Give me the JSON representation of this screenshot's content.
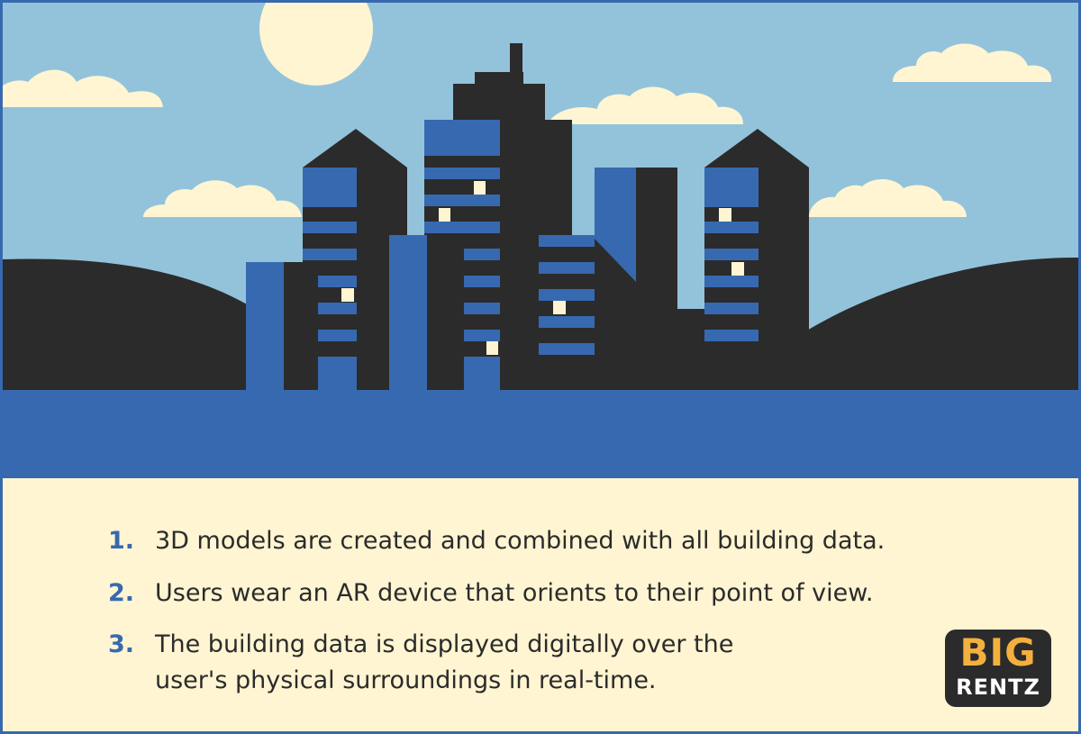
{
  "colors": {
    "sky": "#93c3db",
    "sun": "#fff5d2",
    "cloud": "#fff5d2",
    "building_dark": "#2b2b2b",
    "building_blue": "#3769b0",
    "water": "#3769b0",
    "window_light": "#fff5d2",
    "panel_bg": "#fff5d2",
    "number_color": "#3769b0",
    "logo_gold": "#f4b03e"
  },
  "icons": [
    "sun-icon",
    "cloud-icon",
    "city-skyline-illustration"
  ],
  "steps": [
    {
      "number": "1.",
      "line1": "3D models are created and combined with all building data.",
      "line2": ""
    },
    {
      "number": "2.",
      "line1": "Users wear an AR device that orients to their point of view.",
      "line2": ""
    },
    {
      "number": "3.",
      "line1": "The building data is displayed digitally over the",
      "line2": "user's physical surroundings in real-time."
    }
  ],
  "logo": {
    "top": "BIG",
    "bottom": "RENTZ"
  }
}
